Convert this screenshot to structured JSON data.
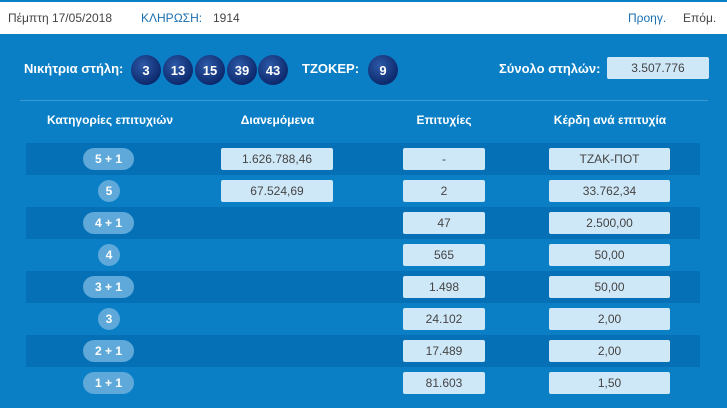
{
  "header": {
    "date": "Πέμπτη 17/05/2018",
    "draw_label": "ΚΛΗΡΩΣΗ:",
    "draw_number": "1914",
    "prev": "Προηγ.",
    "next": "Επόμ."
  },
  "result": {
    "winning_label": "Νικήτρια στήλη:",
    "numbers": [
      "3",
      "13",
      "15",
      "39",
      "43"
    ],
    "joker_label": "ΤΖΟΚΕΡ:",
    "joker": "9",
    "total_label": "Σύνολο στηλών:",
    "total": "3.507.776"
  },
  "table": {
    "headers": [
      "Κατηγορίες επιτυχιών",
      "Διανεμόμενα",
      "Επιτυχίες",
      "Κέρδη ανά επιτυχία"
    ],
    "rows": [
      {
        "category": "5 + 1",
        "distributed": "1.626.788,46",
        "winners": "-",
        "prize": "ΤΖΑΚ-ΠΟΤ"
      },
      {
        "category": "5",
        "distributed": "67.524,69",
        "winners": "2",
        "prize": "33.762,34"
      },
      {
        "category": "4 + 1",
        "distributed": null,
        "winners": "47",
        "prize": "2.500,00"
      },
      {
        "category": "4",
        "distributed": null,
        "winners": "565",
        "prize": "50,00"
      },
      {
        "category": "3 + 1",
        "distributed": null,
        "winners": "1.498",
        "prize": "50,00"
      },
      {
        "category": "3",
        "distributed": null,
        "winners": "24.102",
        "prize": "2,00"
      },
      {
        "category": "2 + 1",
        "distributed": null,
        "winners": "17.489",
        "prize": "2,00"
      },
      {
        "category": "1 + 1",
        "distributed": null,
        "winners": "81.603",
        "prize": "1,50"
      }
    ]
  }
}
